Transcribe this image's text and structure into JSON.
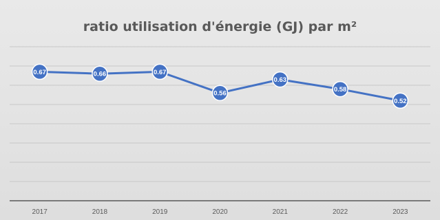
{
  "chart_data": {
    "type": "line",
    "title": "ratio utilisation d'énergie (GJ) par m²",
    "xlabel": "",
    "ylabel": "",
    "categories": [
      "2017",
      "2018",
      "2019",
      "2020",
      "2021",
      "2022",
      "2023"
    ],
    "series": [
      {
        "values": [
          0.67,
          0.66,
          0.67,
          0.56,
          0.63,
          0.58,
          0.52
        ],
        "labels": [
          "0.67",
          "0.66",
          "0.67",
          "0.56",
          "0.63",
          "0.58",
          "0.52"
        ]
      }
    ],
    "ylim": [
      0,
      0.8
    ],
    "grid": true,
    "legend": "none",
    "colors": {
      "line": "#4472c4",
      "marker": "#4472c4",
      "label": "#ffffff",
      "grid": "#c8c8c8",
      "axis": "#595959",
      "tick_text": "#595959",
      "background": "#e4e4e4"
    }
  }
}
